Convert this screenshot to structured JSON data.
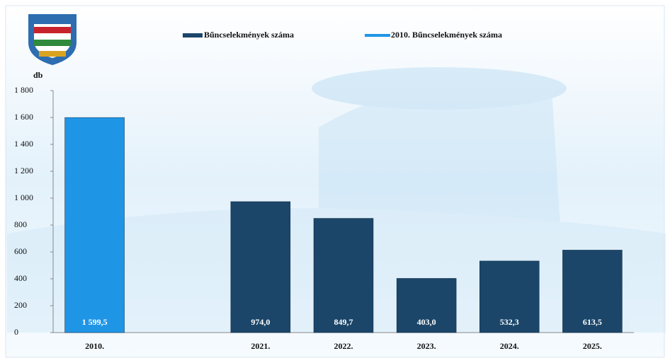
{
  "chart_data": {
    "type": "bar",
    "y_axis_label": "db",
    "categories": [
      "2010.",
      null,
      "2021.",
      "2022.",
      "2023.",
      "2024.",
      "2025."
    ],
    "series": [
      {
        "name": "Bűncselekmények száma",
        "color": "#1b4669",
        "values": [
          null,
          null,
          974.0,
          849.7,
          403.0,
          532.3,
          613.5
        ],
        "value_labels": [
          null,
          null,
          "974,0",
          "849,7",
          "403,0",
          "532,3",
          "613,5"
        ]
      },
      {
        "name": "2010. Bűncselekmények száma",
        "color": "#1f95e6",
        "values": [
          1599.5,
          null,
          null,
          null,
          null,
          null,
          null
        ],
        "value_labels": [
          "1 599,5",
          null,
          null,
          null,
          null,
          null,
          null
        ]
      }
    ],
    "ylim": [
      0,
      1800
    ],
    "yticks": [
      0,
      200,
      400,
      600,
      800,
      {
        "value": 1000,
        "label": "1 000"
      },
      {
        "value": 1200,
        "label": "1 200"
      },
      {
        "value": 1400,
        "label": "1 400"
      },
      {
        "value": 1600,
        "label": "1 600"
      },
      {
        "value": 1800,
        "label": "1 800"
      }
    ]
  }
}
